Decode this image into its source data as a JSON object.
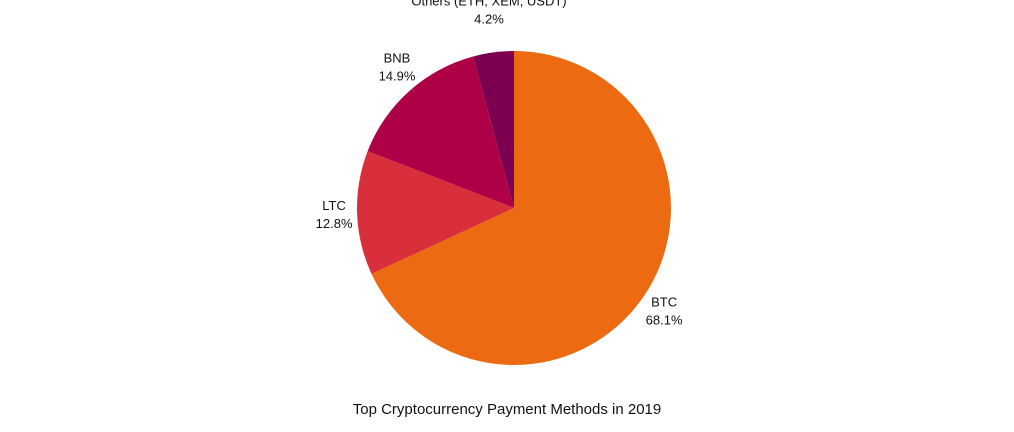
{
  "chart_data": {
    "type": "pie",
    "title": "Top Cryptocurrency Payment Methods in 2019",
    "slices": [
      {
        "label": "BTC",
        "value_text": "68.1%",
        "value": 68.1,
        "color": "#ec6b12"
      },
      {
        "label": "LTC",
        "value_text": "12.8%",
        "value": 12.8,
        "color": "#d92f3a"
      },
      {
        "label": "BNB",
        "value_text": "14.9%",
        "value": 14.9,
        "color": "#ae0047"
      },
      {
        "label": "Others (ETH, XEM, USDT)",
        "value_text": "4.2%",
        "value": 4.2,
        "color": "#7d0050"
      }
    ],
    "start_angle": "12 o'clock",
    "direction": "clockwise",
    "legend": "none"
  }
}
